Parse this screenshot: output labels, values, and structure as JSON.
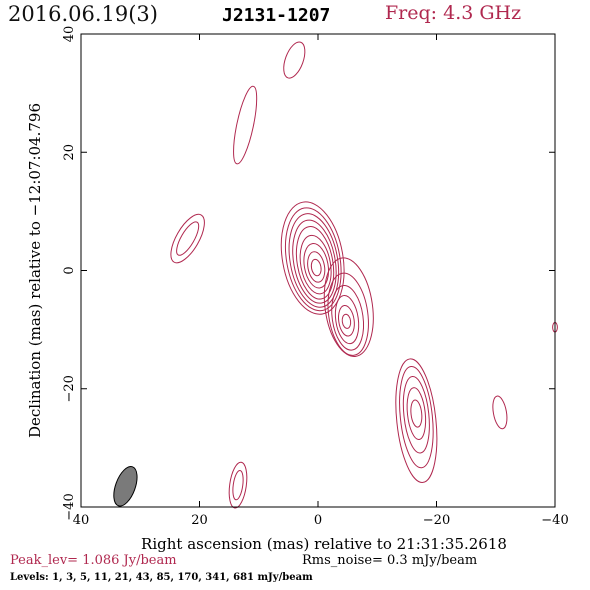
{
  "header": {
    "date": "2016.06.19(3)",
    "source": "J2131-1207",
    "freq": "Freq: 4.3 GHz"
  },
  "footer": {
    "peak": "Peak_lev=  1.086 Jy/beam",
    "rms": "Rms_noise=  0.3 mJy/beam",
    "levels": "Levels:   1,   3,   5,  11,  21,  43,  85, 170, 341, 681 mJy/beam"
  },
  "colors": {
    "contour": "#b0284f",
    "beam": "#7a7a7a",
    "frame": "#000000"
  },
  "chart_data": {
    "type": "contour",
    "xlabel": "Right ascension (mas) relative to 21:31:35.2618",
    "ylabel": "Declination (mas) relative to −12:07:04.796",
    "xlim": [
      40,
      -40
    ],
    "ylim": [
      -40,
      40
    ],
    "xticks": [
      40,
      20,
      0,
      -20,
      -40
    ],
    "yticks": [
      -40,
      -20,
      0,
      20,
      40
    ],
    "xtick_labels": [
      "40",
      "20",
      "0",
      "−20",
      "−40"
    ],
    "ytick_labels": [
      "−40",
      "−20",
      "0",
      "20",
      "40"
    ],
    "levels_mjy": [
      1,
      3,
      5,
      11,
      21,
      43,
      85,
      170,
      341,
      681
    ],
    "peak_jy_per_beam": 1.086,
    "rms_mjy_per_beam": 0.3,
    "beam": {
      "x": 32.5,
      "y": -36.5,
      "major": 6.5,
      "minor": 2.9,
      "pa_deg": 20
    },
    "components": [
      {
        "name": "core",
        "x": 0.3,
        "y": 0.5,
        "rings": [
          {
            "a": 9.6,
            "b": 5.1,
            "rot": -10,
            "dx": 0.6,
            "dy": 1.6
          },
          {
            "a": 8.8,
            "b": 4.5,
            "rot": -10,
            "dx": 0.5,
            "dy": 1.4
          },
          {
            "a": 8.0,
            "b": 4.0,
            "rot": -10,
            "dx": 0.4,
            "dy": 1.2
          },
          {
            "a": 7.1,
            "b": 3.5,
            "rot": -10,
            "dx": 0.3,
            "dy": 1.0
          },
          {
            "a": 6.2,
            "b": 3.0,
            "rot": -10,
            "dx": 0.2,
            "dy": 0.8
          },
          {
            "a": 5.0,
            "b": 2.5,
            "rot": -10,
            "dx": 0.1,
            "dy": 0.5
          },
          {
            "a": 3.8,
            "b": 2.0,
            "rot": -10,
            "dx": 0.0,
            "dy": 0.3
          },
          {
            "a": 2.6,
            "b": 1.4,
            "rot": -10,
            "dx": 0.0,
            "dy": 0.1
          },
          {
            "a": 1.4,
            "b": 0.8,
            "rot": -10,
            "dx": 0.0,
            "dy": 0.0
          }
        ]
      },
      {
        "name": "jet-knot",
        "x": -4.8,
        "y": -8.6,
        "rings": [
          {
            "a": 8.4,
            "b": 4.0,
            "rot": -8,
            "dx": -0.4,
            "dy": 2.4
          },
          {
            "a": 7.0,
            "b": 3.3,
            "rot": -8,
            "dx": -0.3,
            "dy": 1.2
          },
          {
            "a": 5.5,
            "b": 2.6,
            "rot": -8,
            "dx": -0.2,
            "dy": 0.6
          },
          {
            "a": 4.1,
            "b": 1.9,
            "rot": -8,
            "dx": -0.1,
            "dy": 0.3
          },
          {
            "a": 2.6,
            "b": 1.3,
            "rot": -8,
            "dx": 0.0,
            "dy": 0.1
          },
          {
            "a": 1.2,
            "b": 0.7,
            "rot": -8,
            "dx": 0.0,
            "dy": 0.0
          }
        ]
      },
      {
        "name": "knot-se",
        "x": -16.6,
        "y": -24.2,
        "rings": [
          {
            "a": 10.5,
            "b": 3.3,
            "rot": -6,
            "dx": 0.0,
            "dy": -1.2
          },
          {
            "a": 8.6,
            "b": 2.7,
            "rot": -6,
            "dx": 0.0,
            "dy": -0.6
          },
          {
            "a": 6.5,
            "b": 2.1,
            "rot": -6,
            "dx": 0.0,
            "dy": -0.2
          },
          {
            "a": 4.4,
            "b": 1.5,
            "rot": -6,
            "dx": 0.0,
            "dy": 0.0
          },
          {
            "a": 2.3,
            "b": 0.9,
            "rot": -6,
            "dx": 0.0,
            "dy": 0.0
          }
        ]
      },
      {
        "name": "blob-nw",
        "x": 22.0,
        "y": 5.4,
        "rings": [
          {
            "a": 4.6,
            "b": 1.9,
            "rot": 30,
            "dx": 0,
            "dy": 0
          },
          {
            "a": 3.2,
            "b": 1.1,
            "rot": 30,
            "dx": 0,
            "dy": 0
          }
        ]
      },
      {
        "name": "blob-north",
        "x": 12.3,
        "y": 24.6,
        "rings": [
          {
            "a": 6.7,
            "b": 1.4,
            "rot": 12,
            "dx": 0,
            "dy": 0
          }
        ]
      },
      {
        "name": "blob-top",
        "x": 4.0,
        "y": 35.6,
        "rings": [
          {
            "a": 3.2,
            "b": 1.5,
            "rot": 20,
            "dx": 0,
            "dy": 0
          }
        ]
      },
      {
        "name": "blob-bottom",
        "x": 13.5,
        "y": -36.3,
        "rings": [
          {
            "a": 3.9,
            "b": 1.4,
            "rot": 8,
            "dx": 0,
            "dy": 0
          },
          {
            "a": 2.5,
            "b": 0.8,
            "rot": 8,
            "dx": 0,
            "dy": 0
          }
        ]
      },
      {
        "name": "blob-far-se",
        "x": -30.7,
        "y": -24.0,
        "rings": [
          {
            "a": 2.8,
            "b": 1.1,
            "rot": -10,
            "dx": 0,
            "dy": 0
          }
        ]
      },
      {
        "name": "edge-blob",
        "x": -40.0,
        "y": -9.6,
        "rings": [
          {
            "a": 0.8,
            "b": 0.4,
            "rot": 0,
            "dx": 0,
            "dy": 0
          }
        ]
      }
    ]
  }
}
